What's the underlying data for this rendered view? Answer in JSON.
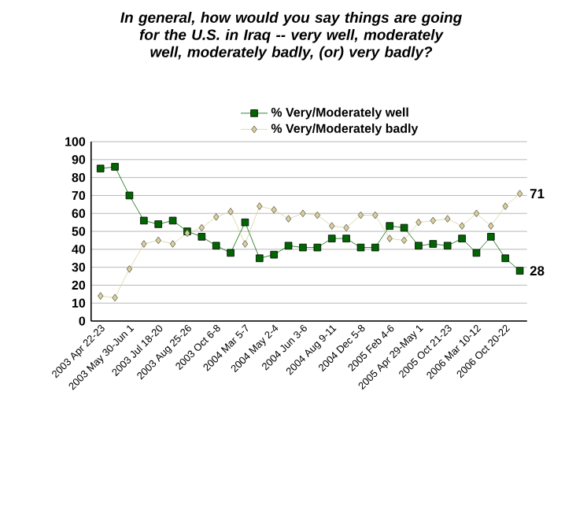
{
  "chart_data": {
    "type": "line",
    "title": "In general, how would you say things are going for the U.S. in Iraq -- very well, moderately well, moderately badly, (or) very badly?",
    "categories": [
      "2003 Apr 22-23",
      null,
      "2003 May 30-Jun 1",
      null,
      "2003 Jul 18-20",
      null,
      "2003 Aug 25-26",
      null,
      "2003 Oct 6-8",
      null,
      "2004 Mar 5-7",
      null,
      "2004 May 2-4",
      null,
      "2004 Jun 3-6",
      null,
      "2004 Aug 9-11",
      null,
      "2004 Dec 5-8",
      null,
      "2005 Feb 4-6",
      null,
      "2005 Apr 29-May 1",
      null,
      "2005 Oct 21-23",
      null,
      "2006 Mar 10-12",
      null,
      "2006 Oct 20-22",
      null
    ],
    "series": [
      {
        "name": "% Very/Moderately well",
        "color": "#006600",
        "marker": "square",
        "values": [
          85,
          86,
          70,
          56,
          54,
          56,
          50,
          47,
          42,
          38,
          55,
          35,
          37,
          42,
          41,
          41,
          46,
          46,
          41,
          41,
          53,
          52,
          42,
          43,
          42,
          46,
          38,
          47,
          35,
          28
        ]
      },
      {
        "name": "% Very/Moderately badly",
        "color": "#d8d0a0",
        "marker": "diamond",
        "values": [
          14,
          13,
          29,
          43,
          45,
          43,
          49,
          52,
          58,
          61,
          43,
          64,
          62,
          57,
          60,
          59,
          53,
          52,
          59,
          59,
          46,
          45,
          55,
          56,
          57,
          53,
          60,
          53,
          64,
          71
        ]
      }
    ],
    "ylim": [
      0,
      100
    ],
    "yticks": [
      0,
      10,
      20,
      30,
      40,
      50,
      60,
      70,
      80,
      90,
      100
    ],
    "grid": "y",
    "legend": "top",
    "annotations": [
      "71",
      "28"
    ]
  }
}
